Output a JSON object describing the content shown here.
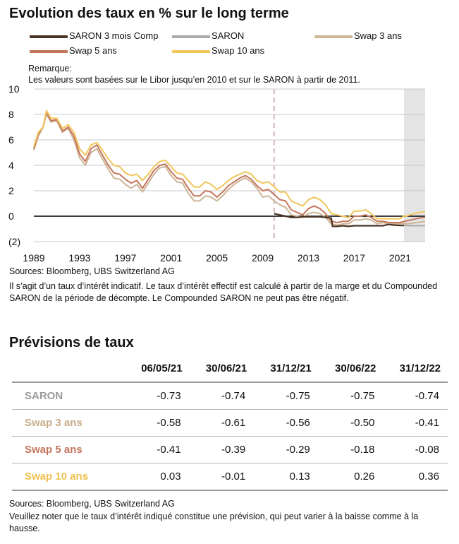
{
  "chart_title": "Evolution des taux en % sur le long terme",
  "colors": {
    "saron_comp": "#4a3426",
    "saron": "#a8a8a8",
    "swap3": "#cdb597",
    "swap5": "#c4765c",
    "swap10": "#f1c65a",
    "forecast_band": "#e4e4e4",
    "divider": "#d6b8b4",
    "grid": "#b9b9b9"
  },
  "remark": {
    "heading": "Remarque:",
    "text": "Les valeurs sont basées sur le Libor jusqu’en 2010 et sur le SARON  à partir de 2011."
  },
  "chart_data": {
    "type": "line",
    "title": "Evolution des taux en % sur le long terme",
    "xlabel": "",
    "ylabel": "",
    "xlim": [
      1989,
      2023.2
    ],
    "ylim": [
      -2,
      10
    ],
    "x_ticks": [
      "1989",
      "1993",
      "1997",
      "2001",
      "2005",
      "2009",
      "2013",
      "2017",
      "2021"
    ],
    "y_ticks": [
      "10",
      "8",
      "6",
      "4",
      "2",
      "0",
      "(2)"
    ],
    "libor_saron_switch_year": 2010,
    "forecast_from_year": 2021.35,
    "series": [
      {
        "name": "SARON 3 mois Comp",
        "color_key": "saron_comp",
        "x": [
          2010,
          2010.5,
          2011,
          2011.5,
          2012,
          2012.5,
          2013,
          2013.5,
          2014,
          2014.5,
          2015,
          2015.1,
          2015.5,
          2016,
          2016.5,
          2017,
          2017.5,
          2018,
          2018.5,
          2019,
          2019.5,
          2020,
          2020.5,
          2021,
          2021.35
        ],
        "y": [
          0.2,
          0.1,
          0.0,
          -0.1,
          -0.1,
          -0.05,
          -0.05,
          -0.05,
          -0.05,
          -0.1,
          -0.15,
          -0.8,
          -0.8,
          -0.75,
          -0.8,
          -0.75,
          -0.75,
          -0.75,
          -0.75,
          -0.75,
          -0.75,
          -0.65,
          -0.7,
          -0.73,
          -0.73
        ]
      },
      {
        "name": "SARON",
        "color_key": "saron",
        "x": [
          2021.35,
          2021.5,
          2022,
          2022.5,
          2023.2
        ],
        "y": [
          -0.73,
          -0.74,
          -0.75,
          -0.75,
          -0.74
        ]
      },
      {
        "name": "Swap 3 ans",
        "color_key": "swap3",
        "x": [
          1989,
          1989.4,
          1989.8,
          1990.1,
          1990.5,
          1991,
          1991.5,
          1992,
          1992.5,
          1993,
          1993.5,
          1994,
          1994.5,
          1995,
          1995.5,
          1996,
          1996.5,
          1997,
          1997.5,
          1998,
          1998.5,
          1999,
          1999.5,
          2000,
          2000.5,
          2001,
          2001.5,
          2002,
          2002.5,
          2003,
          2003.5,
          2004,
          2004.5,
          2005,
          2005.5,
          2006,
          2006.5,
          2007,
          2007.5,
          2008,
          2008.5,
          2009,
          2009.5,
          2010,
          2010.5,
          2011,
          2011.5,
          2012,
          2012.5,
          2013,
          2013.5,
          2014,
          2014.5,
          2015,
          2015.5,
          2016,
          2016.5,
          2017,
          2017.5,
          2018,
          2018.5,
          2019,
          2019.5,
          2020,
          2020.5,
          2021,
          2021.35,
          2021.5,
          2022,
          2022.5,
          2023.2
        ],
        "y": [
          5.2,
          6.3,
          7.0,
          8.0,
          7.4,
          7.5,
          6.6,
          6.9,
          6.0,
          4.6,
          4.0,
          5.0,
          5.3,
          4.5,
          3.7,
          3.0,
          2.9,
          2.5,
          2.2,
          2.5,
          1.9,
          2.6,
          3.3,
          3.8,
          3.9,
          3.2,
          2.7,
          2.6,
          1.8,
          1.2,
          1.2,
          1.6,
          1.5,
          1.2,
          1.6,
          2.1,
          2.5,
          2.8,
          3.0,
          2.7,
          2.2,
          1.5,
          1.6,
          1.2,
          0.9,
          0.7,
          0.1,
          0.0,
          -0.1,
          0.2,
          0.3,
          0.2,
          -0.1,
          -0.6,
          -0.7,
          -0.6,
          -0.6,
          -0.3,
          -0.3,
          -0.2,
          -0.3,
          -0.6,
          -0.5,
          -0.6,
          -0.6,
          -0.6,
          -0.58,
          -0.61,
          -0.56,
          -0.5,
          -0.41
        ]
      },
      {
        "name": "Swap 5 ans",
        "color_key": "swap5",
        "x": [
          1989,
          1989.4,
          1989.8,
          1990.1,
          1990.5,
          1991,
          1991.5,
          1992,
          1992.5,
          1993,
          1993.5,
          1994,
          1994.5,
          1995,
          1995.5,
          1996,
          1996.5,
          1997,
          1997.5,
          1998,
          1998.5,
          1999,
          1999.5,
          2000,
          2000.5,
          2001,
          2001.5,
          2002,
          2002.5,
          2003,
          2003.5,
          2004,
          2004.5,
          2005,
          2005.5,
          2006,
          2006.5,
          2007,
          2007.5,
          2008,
          2008.5,
          2009,
          2009.5,
          2010,
          2010.5,
          2011,
          2011.5,
          2012,
          2012.5,
          2013,
          2013.5,
          2014,
          2014.5,
          2015,
          2015.5,
          2016,
          2016.5,
          2017,
          2017.5,
          2018,
          2018.5,
          2019,
          2019.5,
          2020,
          2020.5,
          2021,
          2021.35,
          2021.5,
          2022,
          2022.5,
          2023.2
        ],
        "y": [
          5.3,
          6.5,
          7.0,
          8.2,
          7.5,
          7.6,
          6.7,
          7.0,
          6.3,
          4.9,
          4.3,
          5.3,
          5.6,
          4.8,
          4.0,
          3.4,
          3.3,
          2.9,
          2.6,
          2.8,
          2.2,
          2.9,
          3.6,
          4.0,
          4.1,
          3.5,
          3.0,
          2.9,
          2.2,
          1.6,
          1.6,
          2.0,
          1.9,
          1.5,
          1.9,
          2.4,
          2.7,
          3.0,
          3.2,
          2.9,
          2.4,
          2.0,
          2.1,
          1.7,
          1.3,
          1.2,
          0.5,
          0.3,
          0.1,
          0.6,
          0.8,
          0.6,
          0.2,
          -0.4,
          -0.5,
          -0.4,
          -0.4,
          0.0,
          0.0,
          0.1,
          -0.1,
          -0.4,
          -0.4,
          -0.5,
          -0.5,
          -0.5,
          -0.41,
          -0.39,
          -0.29,
          -0.18,
          -0.08
        ]
      },
      {
        "name": "Swap 10 ans",
        "color_key": "swap10",
        "x": [
          1989,
          1989.4,
          1989.8,
          1990.1,
          1990.5,
          1991,
          1991.5,
          1992,
          1992.5,
          1993,
          1993.5,
          1994,
          1994.5,
          1995,
          1995.5,
          1996,
          1996.5,
          1997,
          1997.5,
          1998,
          1998.5,
          1999,
          1999.5,
          2000,
          2000.5,
          2001,
          2001.5,
          2002,
          2002.5,
          2003,
          2003.5,
          2004,
          2004.5,
          2005,
          2005.5,
          2006,
          2006.5,
          2007,
          2007.5,
          2008,
          2008.5,
          2009,
          2009.5,
          2010,
          2010.5,
          2011,
          2011.5,
          2012,
          2012.5,
          2013,
          2013.5,
          2014,
          2014.5,
          2015,
          2015.5,
          2016,
          2016.5,
          2017,
          2017.5,
          2018,
          2018.5,
          2019,
          2019.5,
          2020,
          2020.5,
          2021,
          2021.35,
          2021.5,
          2022,
          2022.5,
          2023.2
        ],
        "y": [
          5.5,
          6.6,
          7.0,
          8.3,
          7.7,
          7.7,
          6.9,
          7.2,
          6.6,
          5.3,
          4.8,
          5.6,
          5.8,
          5.2,
          4.5,
          4.0,
          3.9,
          3.4,
          3.2,
          3.3,
          2.8,
          3.3,
          3.9,
          4.3,
          4.4,
          3.9,
          3.4,
          3.3,
          2.8,
          2.3,
          2.3,
          2.7,
          2.5,
          2.1,
          2.4,
          2.8,
          3.1,
          3.3,
          3.5,
          3.3,
          2.8,
          2.6,
          2.7,
          2.3,
          1.9,
          1.9,
          1.2,
          1.0,
          0.8,
          1.3,
          1.5,
          1.3,
          0.9,
          0.2,
          0.1,
          0.0,
          -0.1,
          0.4,
          0.4,
          0.5,
          0.2,
          -0.2,
          -0.2,
          -0.2,
          -0.2,
          -0.2,
          0.03,
          -0.01,
          0.13,
          0.26,
          0.36
        ]
      }
    ]
  },
  "chart_sources": "Sources: Bloomberg, UBS Switzerland AG",
  "chart_footnote": "Il s’agit d’un taux d’intérêt indicatif. Le taux d’intérêt effectif est calculé à partir de la marge et du Compounded SARON de la période de décompte. Le Compounded SARON ne peut pas être négatif.",
  "forecast": {
    "title": "Prévisions de taux",
    "headers": [
      "06/05/21",
      "30/06/21",
      "31/12/21",
      "30/06/22",
      "31/12/22"
    ],
    "rows": [
      {
        "label": "SARON",
        "color_key": "saron",
        "values": [
          "-0.73",
          "-0.74",
          "-0.75",
          "-0.75",
          "-0.74"
        ]
      },
      {
        "label": "Swap 3 ans",
        "color_key": "swap3",
        "values": [
          "-0.58",
          "-0.61",
          "-0.56",
          "-0.50",
          "-0.41"
        ]
      },
      {
        "label": "Swap 5 ans",
        "color_key": "swap5",
        "values": [
          "-0.41",
          "-0.39",
          "-0.29",
          "-0.18",
          "-0.08"
        ]
      },
      {
        "label": "Swap 10 ans",
        "color_key": "swap10",
        "values": [
          "0.03",
          "-0.01",
          "0.13",
          "0.26",
          "0.36"
        ]
      }
    ],
    "sources": "Sources: Bloomberg, UBS Switzerland AG",
    "disclaimer": "Veuillez noter que le taux d’intérêt indiqué constitue une prévision, qui peut varier à la baisse comme à la hausse."
  }
}
